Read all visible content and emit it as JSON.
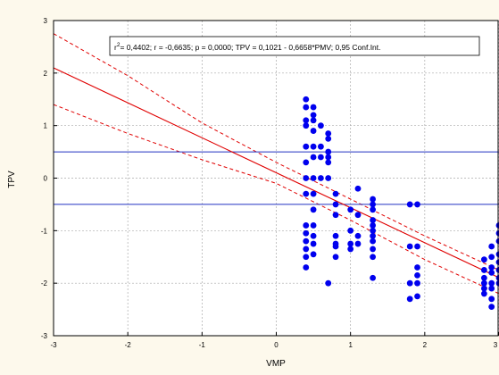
{
  "chart_data": {
    "type": "scatter",
    "title": "",
    "xlabel": "VMP",
    "ylabel": "TPV",
    "xlim": [
      -3,
      3
    ],
    "ylim": [
      -3,
      3
    ],
    "xticks": [
      "-3",
      "-2",
      "-1",
      "0",
      "1",
      "2",
      "3"
    ],
    "yticks": [
      "3",
      "2",
      "1",
      "0",
      "-1",
      "-2",
      "-3"
    ],
    "grid": true,
    "annotation_r2": "2",
    "annotation_text": "= 0,4402; r = -0,6635; p = 0,0000; TPV = 0,1021 - 0,6658*PMV; 0,95 Conf.Int.",
    "annotation_prefix": "r",
    "reference_lines_y": [
      0.5,
      -0.5
    ],
    "regression": {
      "intercept": 0.1021,
      "slope": -0.6658
    },
    "confidence_band": {
      "x": [
        -3,
        -2,
        -1,
        0,
        1,
        2,
        3
      ],
      "upper": [
        2.75,
        1.95,
        1.05,
        0.3,
        -0.4,
        -1.1,
        -1.75
      ],
      "lower": [
        1.4,
        0.85,
        0.35,
        -0.1,
        -0.8,
        -1.55,
        -2.2
      ]
    },
    "points": [
      {
        "x": 0.4,
        "y": 1.5
      },
      {
        "x": 0.4,
        "y": 1.35
      },
      {
        "x": 0.4,
        "y": 1.1
      },
      {
        "x": 0.4,
        "y": 1.0
      },
      {
        "x": 0.4,
        "y": 0.6
      },
      {
        "x": 0.4,
        "y": 0.3
      },
      {
        "x": 0.4,
        "y": 0.0
      },
      {
        "x": 0.4,
        "y": -0.3
      },
      {
        "x": 0.4,
        "y": -0.9
      },
      {
        "x": 0.4,
        "y": -1.05
      },
      {
        "x": 0.4,
        "y": -1.2
      },
      {
        "x": 0.4,
        "y": -1.35
      },
      {
        "x": 0.4,
        "y": -1.5
      },
      {
        "x": 0.4,
        "y": -1.7
      },
      {
        "x": 0.5,
        "y": 1.35
      },
      {
        "x": 0.5,
        "y": 1.2
      },
      {
        "x": 0.5,
        "y": 1.1
      },
      {
        "x": 0.5,
        "y": 0.9
      },
      {
        "x": 0.5,
        "y": 0.6
      },
      {
        "x": 0.5,
        "y": 0.4
      },
      {
        "x": 0.5,
        "y": 0.0
      },
      {
        "x": 0.5,
        "y": -0.3
      },
      {
        "x": 0.5,
        "y": -0.6
      },
      {
        "x": 0.5,
        "y": -0.9
      },
      {
        "x": 0.5,
        "y": -1.1
      },
      {
        "x": 0.5,
        "y": -1.25
      },
      {
        "x": 0.5,
        "y": -1.45
      },
      {
        "x": 0.6,
        "y": 1.0
      },
      {
        "x": 0.6,
        "y": 0.6
      },
      {
        "x": 0.6,
        "y": 0.4
      },
      {
        "x": 0.6,
        "y": 0.0
      },
      {
        "x": 0.7,
        "y": 0.85
      },
      {
        "x": 0.7,
        "y": 0.75
      },
      {
        "x": 0.7,
        "y": 0.5
      },
      {
        "x": 0.7,
        "y": 0.4
      },
      {
        "x": 0.7,
        "y": 0.3
      },
      {
        "x": 0.7,
        "y": 0.0
      },
      {
        "x": 0.7,
        "y": -2.0
      },
      {
        "x": 0.8,
        "y": -0.3
      },
      {
        "x": 0.8,
        "y": -0.5
      },
      {
        "x": 0.8,
        "y": -0.7
      },
      {
        "x": 0.8,
        "y": -1.1
      },
      {
        "x": 0.8,
        "y": -1.25
      },
      {
        "x": 0.8,
        "y": -1.3
      },
      {
        "x": 0.8,
        "y": -1.5
      },
      {
        "x": 1.0,
        "y": -0.6
      },
      {
        "x": 1.0,
        "y": -1.0
      },
      {
        "x": 1.0,
        "y": -1.25
      },
      {
        "x": 1.0,
        "y": -1.35
      },
      {
        "x": 1.1,
        "y": -0.2
      },
      {
        "x": 1.1,
        "y": -0.7
      },
      {
        "x": 1.1,
        "y": -1.1
      },
      {
        "x": 1.1,
        "y": -1.25
      },
      {
        "x": 1.3,
        "y": -0.4
      },
      {
        "x": 1.3,
        "y": -0.5
      },
      {
        "x": 1.3,
        "y": -0.6
      },
      {
        "x": 1.3,
        "y": -0.8
      },
      {
        "x": 1.3,
        "y": -0.9
      },
      {
        "x": 1.3,
        "y": -1.0
      },
      {
        "x": 1.3,
        "y": -1.1
      },
      {
        "x": 1.3,
        "y": -1.2
      },
      {
        "x": 1.3,
        "y": -1.35
      },
      {
        "x": 1.3,
        "y": -1.5
      },
      {
        "x": 1.3,
        "y": -1.9
      },
      {
        "x": 1.8,
        "y": -0.5
      },
      {
        "x": 1.8,
        "y": -1.3
      },
      {
        "x": 1.8,
        "y": -2.0
      },
      {
        "x": 1.8,
        "y": -2.3
      },
      {
        "x": 1.9,
        "y": -0.5
      },
      {
        "x": 1.9,
        "y": -1.3
      },
      {
        "x": 1.9,
        "y": -1.7
      },
      {
        "x": 1.9,
        "y": -1.85
      },
      {
        "x": 1.9,
        "y": -2.0
      },
      {
        "x": 1.9,
        "y": -2.25
      },
      {
        "x": 2.8,
        "y": -1.55
      },
      {
        "x": 2.8,
        "y": -1.75
      },
      {
        "x": 2.8,
        "y": -1.9
      },
      {
        "x": 2.8,
        "y": -2.0
      },
      {
        "x": 2.8,
        "y": -2.1
      },
      {
        "x": 2.8,
        "y": -2.2
      },
      {
        "x": 2.9,
        "y": -1.3
      },
      {
        "x": 2.9,
        "y": -1.5
      },
      {
        "x": 2.9,
        "y": -1.7
      },
      {
        "x": 2.9,
        "y": -1.8
      },
      {
        "x": 2.9,
        "y": -2.0
      },
      {
        "x": 2.9,
        "y": -2.1
      },
      {
        "x": 2.9,
        "y": -2.3
      },
      {
        "x": 2.9,
        "y": -2.45
      },
      {
        "x": 3.0,
        "y": -0.9
      },
      {
        "x": 3.0,
        "y": -1.05
      },
      {
        "x": 3.0,
        "y": -1.2
      },
      {
        "x": 3.0,
        "y": -1.45
      },
      {
        "x": 3.0,
        "y": -1.6
      },
      {
        "x": 3.0,
        "y": -1.75
      },
      {
        "x": 3.0,
        "y": -1.9
      },
      {
        "x": 3.0,
        "y": -2.0
      }
    ],
    "colors": {
      "points": "#0000ee",
      "regression": "#e00000",
      "reference": "#2030c0",
      "grid": "#aaaaaa",
      "plot_bg": "#ffffff"
    }
  }
}
